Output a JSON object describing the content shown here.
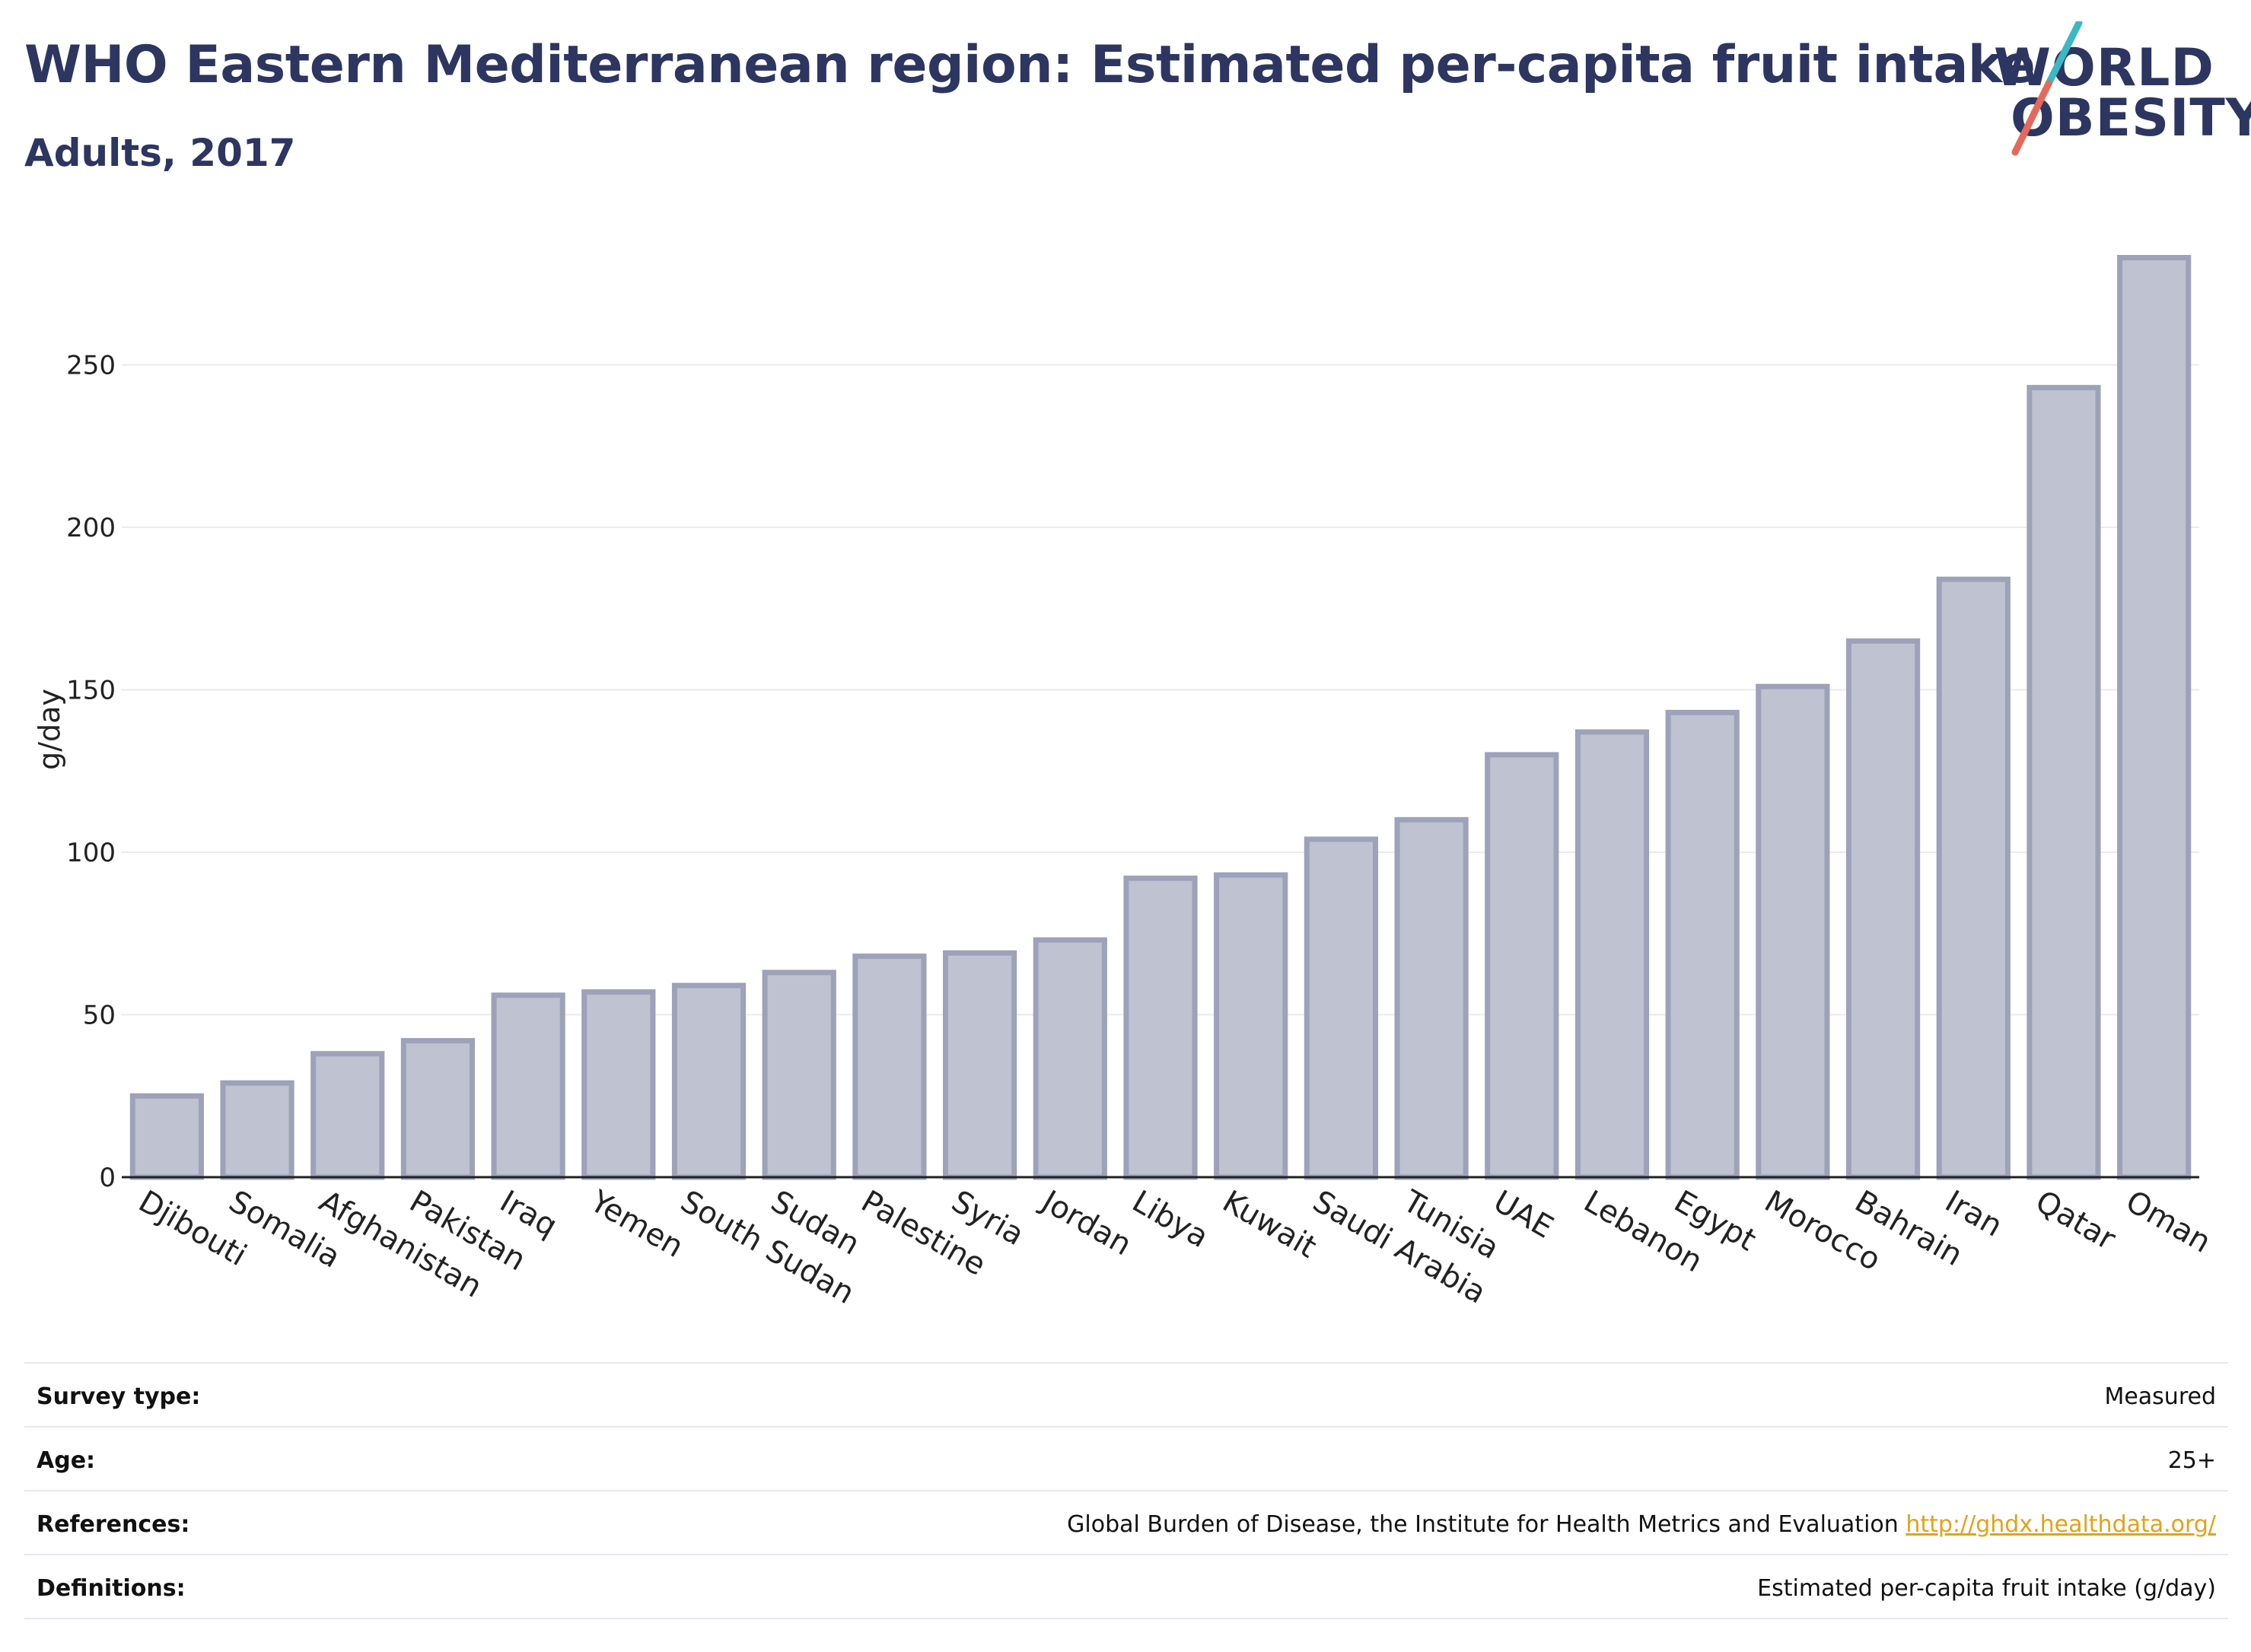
{
  "header": {
    "title": "WHO Eastern Mediterranean region: Estimated per-capita fruit intake",
    "subtitle": "Adults, 2017"
  },
  "logo": {
    "line1": "WORLD",
    "line2": "OBESITY",
    "slash_colors": [
      "#3bb8c4",
      "#e5695a"
    ]
  },
  "chart_data": {
    "type": "bar",
    "ylabel": "g/day",
    "xlabel": "",
    "ylim": [
      0,
      285
    ],
    "yticks": [
      0,
      50,
      100,
      150,
      200,
      250
    ],
    "grid": true,
    "bar_color": "#bec2d1",
    "bar_edge_color": "#9da2b9",
    "categories": [
      "Djibouti",
      "Somalia",
      "Afghanistan",
      "Pakistan",
      "Iraq",
      "Yemen",
      "South Sudan",
      "Sudan",
      "Palestine",
      "Syria",
      "Jordan",
      "Libya",
      "Kuwait",
      "Saudi Arabia",
      "Tunisia",
      "UAE",
      "Lebanon",
      "Egypt",
      "Morocco",
      "Bahrain",
      "Iran",
      "Qatar",
      "Oman"
    ],
    "values": [
      25,
      29,
      38,
      42,
      56,
      57,
      59,
      63,
      68,
      69,
      73,
      92,
      93,
      104,
      110,
      130,
      137,
      143,
      151,
      165,
      184,
      243,
      283
    ]
  },
  "meta": {
    "rows": [
      {
        "label": "Survey type:",
        "value": "Measured"
      },
      {
        "label": "Age:",
        "value": "25+"
      },
      {
        "label": "References:",
        "value": "Global Burden of Disease, the Institute for Health Metrics and Evaluation ",
        "link": "http://ghdx.healthdata.org/"
      },
      {
        "label": "Definitions:",
        "value": "Estimated per-capita fruit intake (g/day)"
      }
    ]
  }
}
